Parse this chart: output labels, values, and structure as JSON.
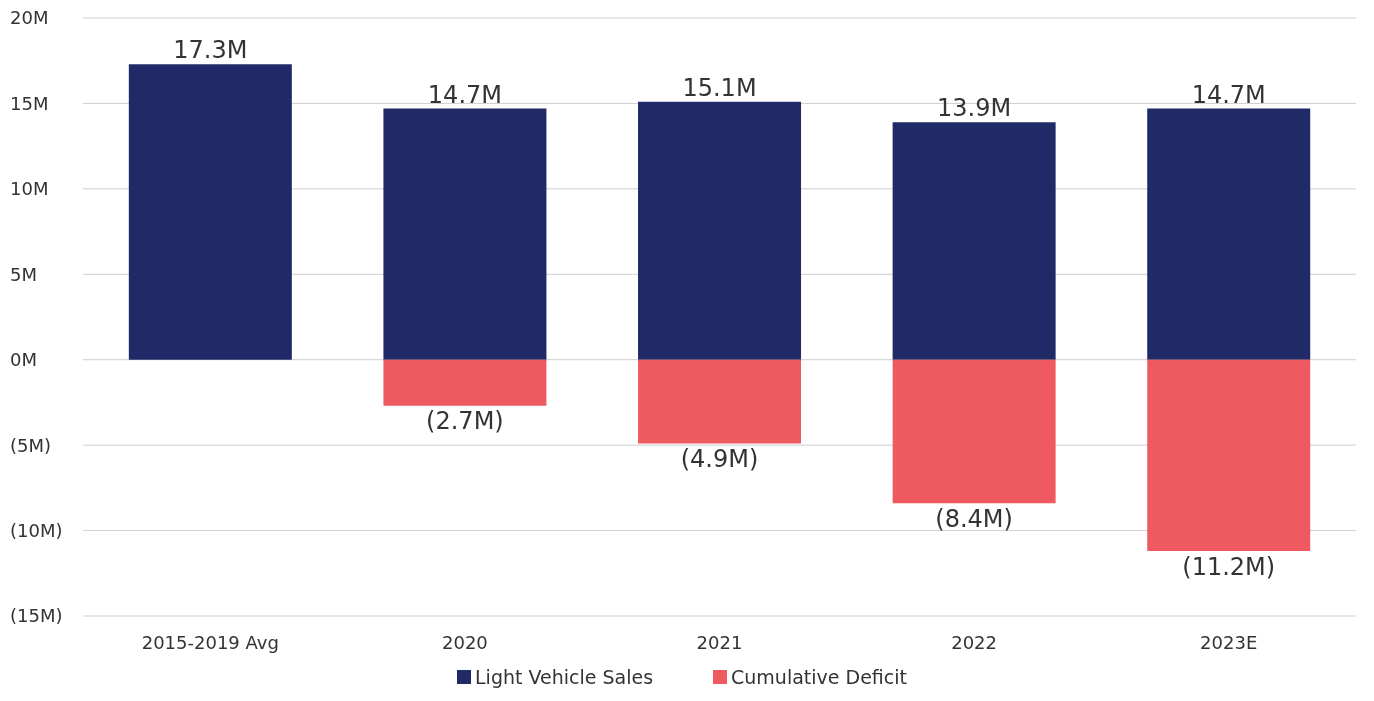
{
  "chart_data": {
    "type": "bar",
    "stacked": true,
    "categories": [
      "2015-2019 Avg",
      "2020",
      "2021",
      "2022",
      "2023E"
    ],
    "series": [
      {
        "name": "Light Vehicle Sales",
        "color": "#202a66",
        "values": [
          17.3,
          14.7,
          15.1,
          13.9,
          14.7
        ],
        "value_labels": [
          "17.3M",
          "14.7M",
          "15.1M",
          "13.9M",
          "14.7M"
        ]
      },
      {
        "name": "Cumulative Deficit",
        "color": "#ef5a60",
        "values": [
          null,
          -2.7,
          -4.9,
          -8.4,
          -11.2
        ],
        "value_labels": [
          null,
          "(2.7M)",
          "(4.9M)",
          "(8.4M)",
          "(11.2M)"
        ]
      }
    ],
    "ylim": [
      -15,
      20
    ],
    "yticks": [
      {
        "value": 20,
        "label": "20M"
      },
      {
        "value": 15,
        "label": "15M"
      },
      {
        "value": 10,
        "label": "10M"
      },
      {
        "value": 5,
        "label": "5M"
      },
      {
        "value": 0,
        "label": "0M"
      },
      {
        "value": -5,
        "label": "(5M)"
      },
      {
        "value": -10,
        "label": "(10M)"
      },
      {
        "value": -15,
        "label": "(15M)"
      }
    ],
    "grid": "y",
    "legend": "bottom"
  }
}
